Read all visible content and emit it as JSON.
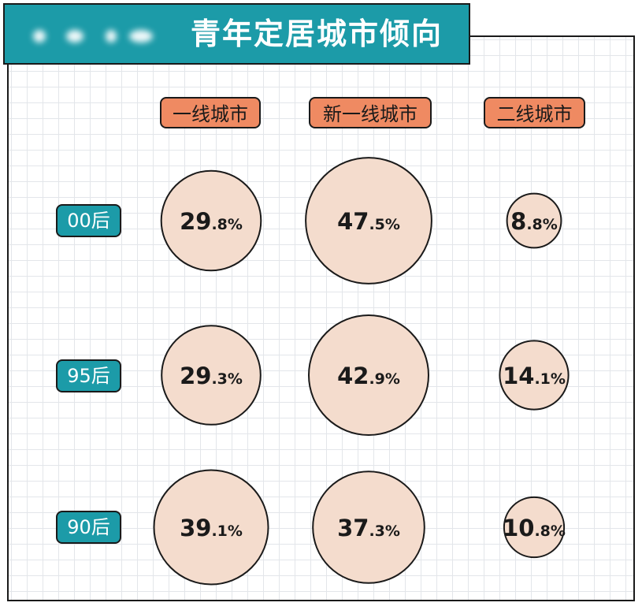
{
  "header": {
    "title": "青年定居城市倾向",
    "logo_text": ""
  },
  "chart_data": {
    "type": "bubble-matrix",
    "title": "青年定居城市倾向",
    "columns": [
      "一线城市",
      "新一线城市",
      "二线城市"
    ],
    "rows": [
      "00后",
      "95后",
      "90后"
    ],
    "unit": "%",
    "values": [
      [
        29.8,
        47.5,
        8.8
      ],
      [
        29.3,
        42.9,
        14.1
      ],
      [
        39.1,
        37.3,
        10.8
      ]
    ],
    "labels": [
      [
        [
          "29",
          ".8%"
        ],
        [
          "47",
          ".5%"
        ],
        [
          "8",
          ".8%"
        ]
      ],
      [
        [
          "29",
          ".3%"
        ],
        [
          "42",
          ".9%"
        ],
        [
          "14",
          ".1%"
        ]
      ],
      [
        [
          "39",
          ".1%"
        ],
        [
          "37",
          ".3%"
        ],
        [
          "10",
          ".8%"
        ]
      ]
    ],
    "colors": {
      "bubble_fill": "#f4dccd",
      "bubble_stroke": "#1a1a1a",
      "header_fill": "#ef8a62",
      "row_fill": "#1c9ba8",
      "title_fill": "#1c9ba8",
      "grid": "#e3e6ea"
    }
  }
}
